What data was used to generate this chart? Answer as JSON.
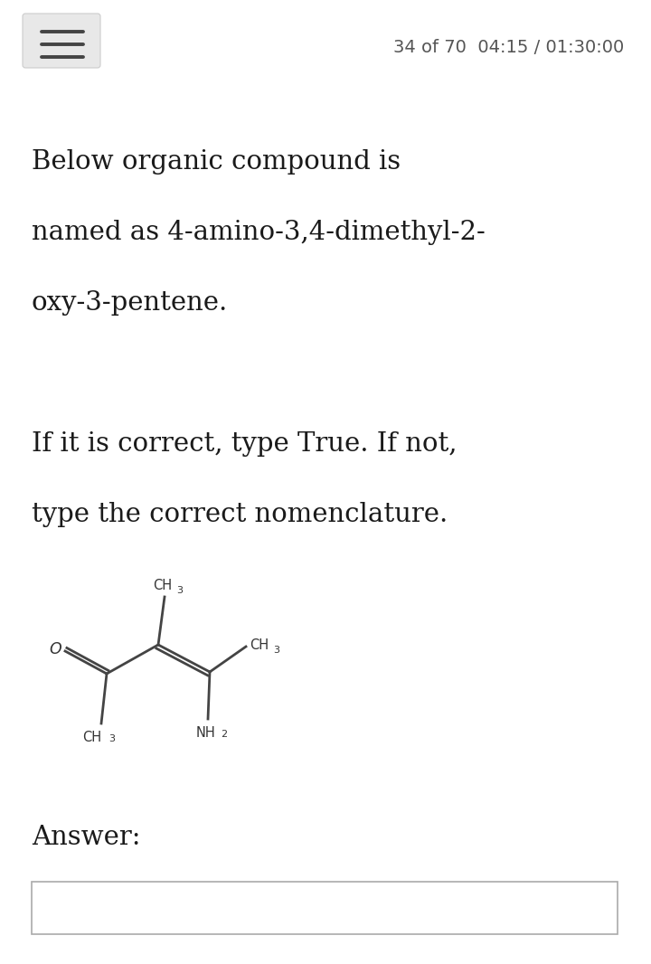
{
  "bg_color": "#ffffff",
  "header_text": "34 of 70  04:15 / 01:30:00",
  "header_text_color": "#555555",
  "header_text_size": 14,
  "menu_bar_color": "#e8e8e8",
  "menu_icon_color": "#444444",
  "body_text_lines": [
    "Below organic compound is",
    "named as 4-amino-3,4-dimethyl-2-",
    "oxy-3-pentene.",
    "",
    "If it is correct, type True. If not,",
    "type the correct nomenclature."
  ],
  "body_text_color": "#1a1a1a",
  "body_text_size": 21,
  "answer_label": "Answer:",
  "answer_label_size": 21,
  "input_box_border": "#aaaaaa",
  "bond_color": "#444444",
  "chem_label_color": "#333333",
  "chem_label_size": 10.5
}
